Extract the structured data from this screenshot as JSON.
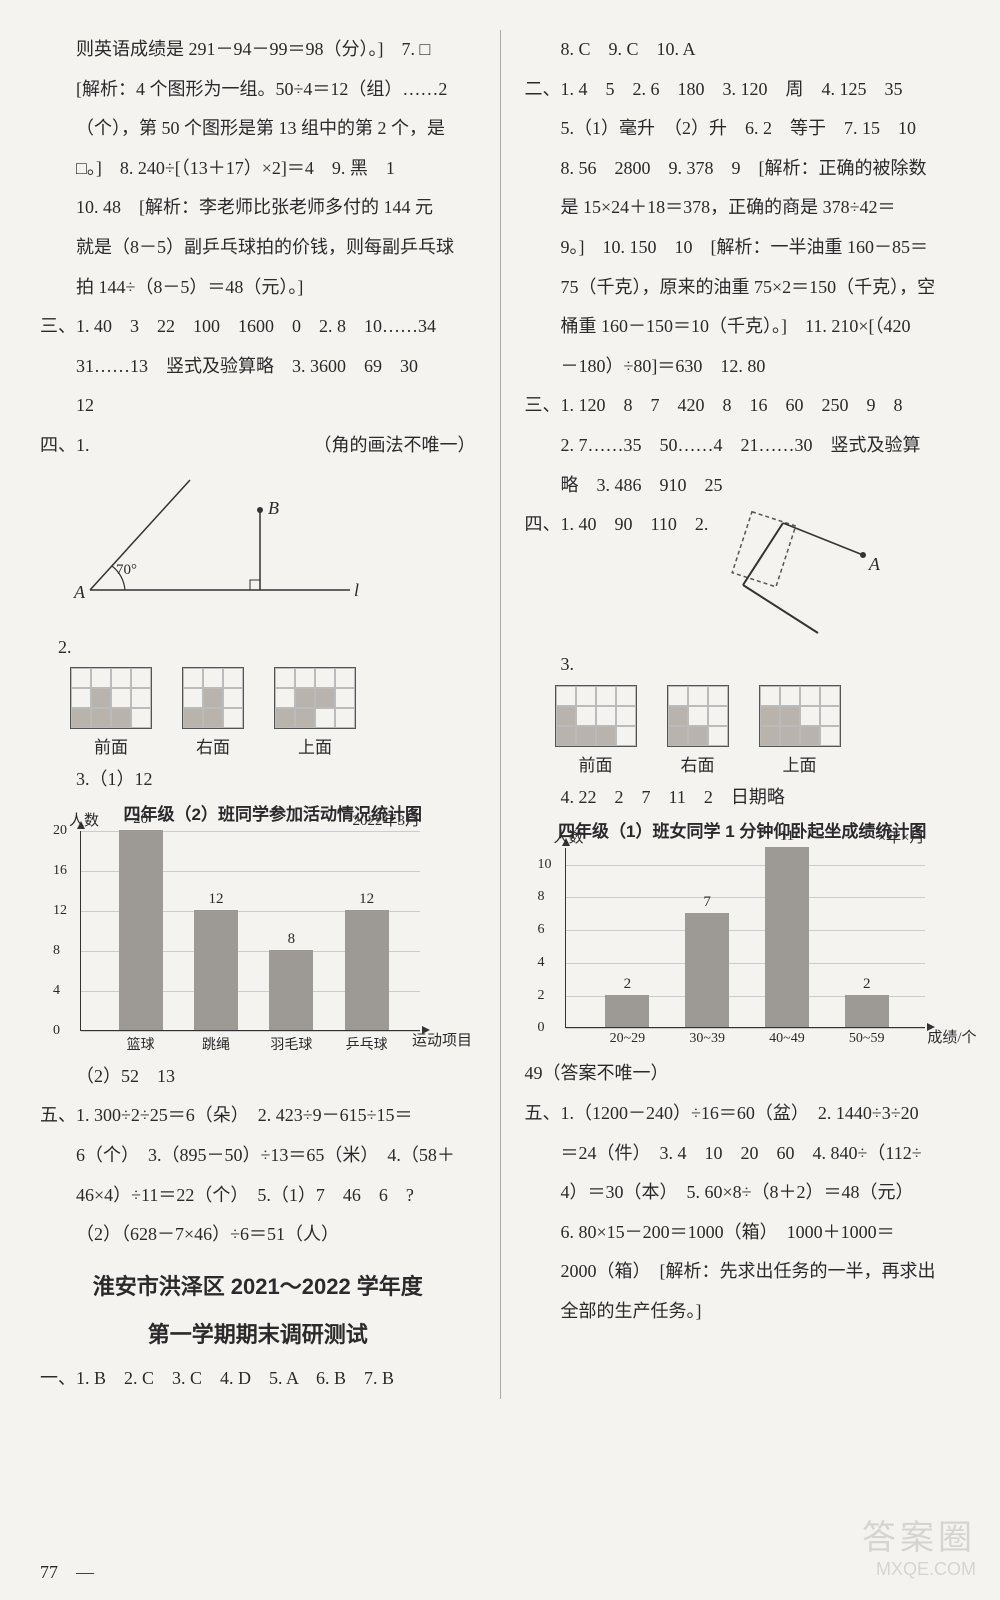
{
  "left": {
    "p1": "则英语成绩是 291－94－99＝98（分）。]　7. □",
    "p2": "[解析：4 个图形为一组。50÷4＝12（组）……2",
    "p3": "（个），第 50 个图形是第 13 组中的第 2 个，是",
    "p4": "□。]　8. 240÷[（13＋17）×2]＝4　9. 黑　1",
    "p5": "10. 48　[解析：李老师比张老师多付的 144 元",
    "p6": "就是（8－5）副乒乓球拍的价钱，则每副乒乓球",
    "p7": "拍 144÷（8－5）＝48（元）。]",
    "sec3_1": "三、1. 40　3　22　100　1600　0　2. 8　10……34",
    "sec3_2": "31……13　竖式及验算略　3. 3600　69　30",
    "sec3_3": "12",
    "sec4_1": "四、1.",
    "sec4_1_note": "（角的画法不唯一）",
    "angle_deg": "70°",
    "angle_A": "A",
    "angle_B": "B",
    "angle_l": "l",
    "sec4_2": "2.",
    "view_front": "前面",
    "view_right": "右面",
    "view_top": "上面",
    "sec4_3": "3.（1）12",
    "chart1_title": "四年级（2）班同学参加活动情况统计图",
    "chart1": {
      "y_title": "人数",
      "date": "2022年3月",
      "x_title": "运动项目",
      "ymax": 20,
      "yticks": [
        0,
        4,
        8,
        12,
        16,
        20
      ],
      "categories": [
        "篮球",
        "跳绳",
        "羽毛球",
        "乒乓球"
      ],
      "values": [
        20,
        12,
        8,
        12
      ],
      "bar_color": "#9d9a95",
      "grid_color": "#cccccc"
    },
    "sec4_3b": "（2）52　13",
    "sec5_1": "五、1. 300÷2÷25＝6（朵）　2. 423÷9－615÷15＝",
    "sec5_2": "6（个）　3.（895－50）÷13＝65（米）　4.（58＋",
    "sec5_3": "46×4）÷11＝22（个）　5.（1）7　46　6　?",
    "sec5_4": "（2）（628－7×46）÷6＝51（人）",
    "title1": "淮安市洪泽区 2021～2022 学年度",
    "title2": "第一学期期末调研测试",
    "sec1": "一、1. B　2. C　3. C　4. D　5. A　6. B　7. B"
  },
  "right": {
    "p1": "8. C　9. C　10. A",
    "sec2_1": "二、1. 4　5　2. 6　180　3. 120　周　4. 125　35",
    "sec2_2": "5.（1）毫升　（2）升　6. 2　等于　7. 15　10",
    "sec2_3": "8. 56　2800　9. 378　9　[解析：正确的被除数",
    "sec2_4": "是 15×24＋18＝378，正确的商是 378÷42＝",
    "sec2_5": "9。]　10. 150　10　[解析：一半油重 160－85＝",
    "sec2_6": "75（千克），原来的油重 75×2＝150（千克），空",
    "sec2_7": "桶重 160－150＝10（千克）。]　11. 210×[（420",
    "sec2_8": "－180）÷80]＝630　12. 80",
    "sec3_1": "三、1. 120　8　7　420　8　16　60　250　9　8",
    "sec3_2": "2. 7……35　50……4　21……30　竖式及验算",
    "sec3_3": "略　3. 486　910　25",
    "sec4_1": "四、1. 40　90　110　2.",
    "angle_A": "A",
    "sec4_3": "3.",
    "view_front": "前面",
    "view_right": "右面",
    "view_top": "上面",
    "sec4_4": "4. 22　2　7　11　2　日期略",
    "chart2_title": "四年级（1）班女同学 1 分钟仰卧起坐成绩统计图",
    "chart2": {
      "y_title": "人数",
      "date": "×年×月",
      "x_title": "成绩/个",
      "ymax": 11,
      "yticks": [
        0,
        2,
        4,
        6,
        8,
        10
      ],
      "categories": [
        "20~29",
        "30~39",
        "40~49",
        "50~59"
      ],
      "values": [
        2,
        7,
        11,
        2
      ],
      "bar_color": "#9d9a95",
      "grid_color": "#cccccc"
    },
    "sec4_note": "49（答案不唯一）",
    "sec5_1": "五、1.（1200－240）÷16＝60（盆）　2. 1440÷3÷20",
    "sec5_2": "＝24（件）　3. 4　10　20　60　4. 840÷（112÷",
    "sec5_3": "4）＝30（本）　5. 60×8÷（8＋2）＝48（元）",
    "sec5_4": "6. 80×15－200＝1000（箱）　1000＋1000＝",
    "sec5_5": "2000（箱）　[解析：先求出任务的一半，再求出",
    "sec5_6": "全部的生产任务。]"
  },
  "page_num": "77",
  "watermark1": "答案圈",
  "watermark2": "MXQE.COM"
}
